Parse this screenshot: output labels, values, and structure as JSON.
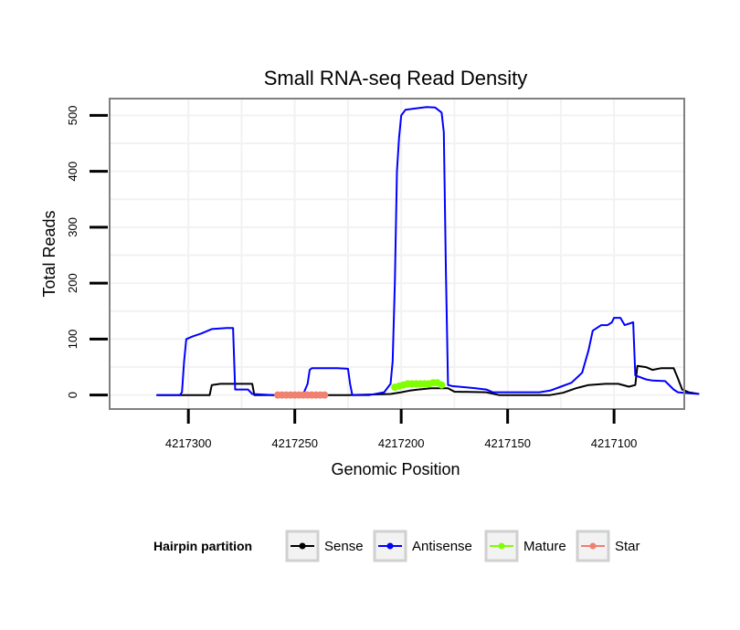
{
  "chart_data": {
    "type": "line",
    "title": "Small RNA-seq Read Density",
    "xlabel": "Genomic Position",
    "ylabel": "Total Reads",
    "x_reversed": true,
    "xlim": [
      4217067,
      4217337
    ],
    "ylim": [
      -25,
      530
    ],
    "x_ticks": [
      4217300,
      4217250,
      4217200,
      4217150,
      4217100
    ],
    "y_ticks": [
      0,
      100,
      200,
      300,
      400,
      500
    ],
    "grid": true,
    "legend": {
      "title": "Hairpin partition",
      "position": "bottom"
    },
    "series": [
      {
        "name": "Sense",
        "color": "#000000",
        "marker_style": "step",
        "points": [
          [
            4217315,
            0
          ],
          [
            4217290,
            0
          ],
          [
            4217289,
            18
          ],
          [
            4217285,
            20
          ],
          [
            4217270,
            20
          ],
          [
            4217269,
            0
          ],
          [
            4217240,
            0
          ],
          [
            4217225,
            0
          ],
          [
            4217215,
            1
          ],
          [
            4217205,
            2
          ],
          [
            4217200,
            5
          ],
          [
            4217196,
            8
          ],
          [
            4217192,
            10
          ],
          [
            4217186,
            12
          ],
          [
            4217178,
            12
          ],
          [
            4217175,
            6
          ],
          [
            4217160,
            5
          ],
          [
            4217154,
            0
          ],
          [
            4217140,
            0
          ],
          [
            4217130,
            0
          ],
          [
            4217124,
            4
          ],
          [
            4217118,
            12
          ],
          [
            4217112,
            18
          ],
          [
            4217104,
            20
          ],
          [
            4217098,
            20
          ],
          [
            4217093,
            15
          ],
          [
            4217090,
            18
          ],
          [
            4217089,
            52
          ],
          [
            4217085,
            50
          ],
          [
            4217082,
            45
          ],
          [
            4217078,
            48
          ],
          [
            4217072,
            48
          ],
          [
            4217070,
            30
          ],
          [
            4217068,
            10
          ],
          [
            4217065,
            5
          ],
          [
            4217060,
            2
          ]
        ]
      },
      {
        "name": "Antisense",
        "color": "#0000ff",
        "marker_style": "line",
        "points": [
          [
            4217315,
            0
          ],
          [
            4217304,
            0
          ],
          [
            4217303,
            5
          ],
          [
            4217302,
            60
          ],
          [
            4217301,
            100
          ],
          [
            4217298,
            105
          ],
          [
            4217294,
            110
          ],
          [
            4217289,
            118
          ],
          [
            4217282,
            120
          ],
          [
            4217279,
            120
          ],
          [
            4217278,
            10
          ],
          [
            4217272,
            10
          ],
          [
            4217270,
            2
          ],
          [
            4217260,
            0
          ],
          [
            4217256,
            2
          ],
          [
            4217246,
            2
          ],
          [
            4217244,
            20
          ],
          [
            4217243,
            45
          ],
          [
            4217242,
            48
          ],
          [
            4217230,
            48
          ],
          [
            4217225,
            47
          ],
          [
            4217224,
            20
          ],
          [
            4217223,
            0
          ],
          [
            4217215,
            0
          ],
          [
            4217208,
            5
          ],
          [
            4217205,
            20
          ],
          [
            4217204,
            60
          ],
          [
            4217203,
            200
          ],
          [
            4217202,
            400
          ],
          [
            4217201,
            460
          ],
          [
            4217200,
            500
          ],
          [
            4217198,
            510
          ],
          [
            4217194,
            512
          ],
          [
            4217188,
            515
          ],
          [
            4217184,
            514
          ],
          [
            4217181,
            505
          ],
          [
            4217180,
            470
          ],
          [
            4217179,
            220
          ],
          [
            4217178,
            18
          ],
          [
            4217176,
            16
          ],
          [
            4217170,
            14
          ],
          [
            4217165,
            12
          ],
          [
            4217160,
            10
          ],
          [
            4217157,
            5
          ],
          [
            4217150,
            5
          ],
          [
            4217140,
            5
          ],
          [
            4217135,
            5
          ],
          [
            4217130,
            8
          ],
          [
            4217125,
            15
          ],
          [
            4217120,
            22
          ],
          [
            4217115,
            40
          ],
          [
            4217112,
            80
          ],
          [
            4217110,
            115
          ],
          [
            4217106,
            125
          ],
          [
            4217103,
            125
          ],
          [
            4217101,
            130
          ],
          [
            4217100,
            138
          ],
          [
            4217097,
            138
          ],
          [
            4217095,
            125
          ],
          [
            4217091,
            130
          ],
          [
            4217090,
            35
          ],
          [
            4217085,
            28
          ],
          [
            4217082,
            26
          ],
          [
            4217076,
            25
          ],
          [
            4217072,
            10
          ],
          [
            4217070,
            5
          ],
          [
            4217065,
            3
          ],
          [
            4217060,
            2
          ]
        ]
      },
      {
        "name": "Mature",
        "color": "#7fff00",
        "marker_style": "dots",
        "points": [
          [
            4217203,
            14
          ],
          [
            4217201,
            16
          ],
          [
            4217199,
            18
          ],
          [
            4217197,
            20
          ],
          [
            4217195,
            20
          ],
          [
            4217193,
            20
          ],
          [
            4217191,
            20
          ],
          [
            4217189,
            20
          ],
          [
            4217187,
            20
          ],
          [
            4217185,
            22
          ],
          [
            4217183,
            22
          ],
          [
            4217181,
            18
          ]
        ]
      },
      {
        "name": "Star",
        "color": "#f08070",
        "marker_style": "dots",
        "points": [
          [
            4217258,
            0
          ],
          [
            4217256,
            0
          ],
          [
            4217254,
            0
          ],
          [
            4217252,
            0
          ],
          [
            4217250,
            0
          ],
          [
            4217248,
            0
          ],
          [
            4217246,
            0
          ],
          [
            4217244,
            0
          ],
          [
            4217242,
            0
          ],
          [
            4217240,
            0
          ],
          [
            4217238,
            0
          ],
          [
            4217236,
            0
          ]
        ]
      }
    ]
  }
}
